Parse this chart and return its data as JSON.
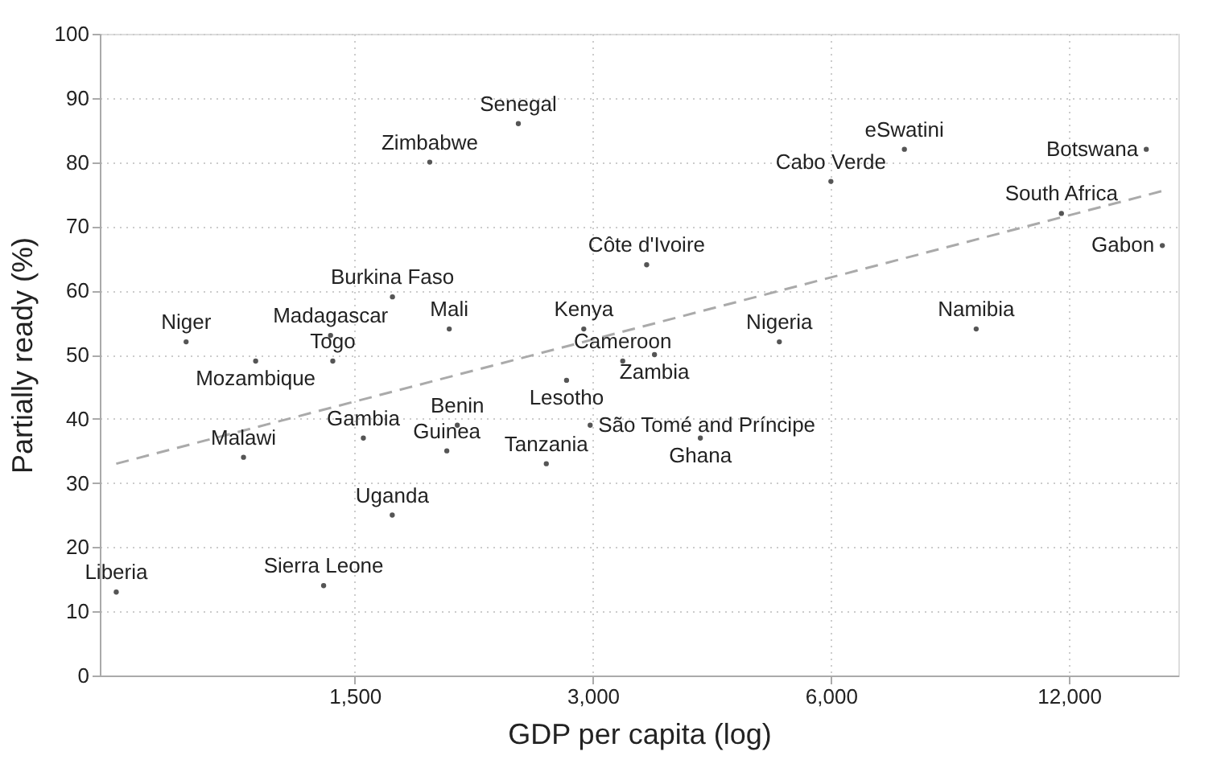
{
  "chart_data": {
    "type": "scatter",
    "xlabel": "GDP per capita (log)",
    "ylabel": "Partially ready (%)",
    "log": "x",
    "xlim": [
      714,
      16500
    ],
    "xticks": [
      {
        "value": 1500,
        "label": "1,500"
      },
      {
        "value": 3000,
        "label": "3,000"
      },
      {
        "value": 6000,
        "label": "6,000"
      },
      {
        "value": 12000,
        "label": "12,000"
      }
    ],
    "ylim": [
      0,
      100
    ],
    "yticks": [
      0,
      10,
      20,
      30,
      40,
      50,
      60,
      70,
      80,
      90,
      100
    ],
    "grid": true,
    "series": [
      {
        "color": "#555555",
        "marker": "circle",
        "x": [
          749,
          918,
          1124,
          1398,
          1407,
          1085,
          1538,
          1673,
          1370,
          1674,
          1975,
          1961,
          2415,
          1866,
          3509,
          2922,
          3273,
          3590,
          2779,
          2022,
          2977,
          2620,
          4103,
          5164,
          7432,
          15030,
          6000,
          11740,
          15750,
          9160
        ],
        "values": [
          13,
          52,
          49,
          53,
          49,
          34,
          37,
          25,
          14,
          59,
          54,
          35,
          86,
          80,
          64,
          54,
          49,
          50,
          46,
          39,
          39,
          33,
          37,
          52,
          82,
          82,
          77,
          72,
          67,
          54
        ]
      },
      {
        "type": "line",
        "color": "#aaaaaa",
        "line_style": "dashed",
        "marker": "none",
        "x": [
          749,
          15750
        ],
        "values": [
          33,
          75.5
        ]
      }
    ],
    "annotations": [
      {
        "text": "Liberia",
        "x": 749,
        "y": 13
      },
      {
        "text": "Niger",
        "x": 918,
        "y": 52
      },
      {
        "text": "Mozambique",
        "x": 1124,
        "y": 49
      },
      {
        "text": "Madagascar",
        "x": 1398,
        "y": 53
      },
      {
        "text": "Togo",
        "x": 1407,
        "y": 49
      },
      {
        "text": "Malawi",
        "x": 1085,
        "y": 34
      },
      {
        "text": "Gambia",
        "x": 1538,
        "y": 37
      },
      {
        "text": "Uganda",
        "x": 1673,
        "y": 25
      },
      {
        "text": "Sierra Leone",
        "x": 1370,
        "y": 14
      },
      {
        "text": "Burkina Faso",
        "x": 1674,
        "y": 59
      },
      {
        "text": "Mali",
        "x": 1975,
        "y": 54
      },
      {
        "text": "Guinea",
        "x": 1961,
        "y": 35
      },
      {
        "text": "Senegal",
        "x": 2415,
        "y": 86
      },
      {
        "text": "Zimbabwe",
        "x": 1866,
        "y": 80
      },
      {
        "text": "Côte d'Ivoire",
        "x": 3509,
        "y": 64
      },
      {
        "text": "Kenya",
        "x": 2922,
        "y": 54
      },
      {
        "text": "Cameroon",
        "x": 3273,
        "y": 49
      },
      {
        "text": "Zambia",
        "x": 3590,
        "y": 50
      },
      {
        "text": "Lesotho",
        "x": 2779,
        "y": 46
      },
      {
        "text": "Benin",
        "x": 2022,
        "y": 39
      },
      {
        "text": "São Tomé and Príncipe",
        "x": 2977,
        "y": 39
      },
      {
        "text": "Tanzania",
        "x": 2620,
        "y": 33
      },
      {
        "text": "Ghana",
        "x": 4103,
        "y": 37
      },
      {
        "text": "Nigeria",
        "x": 5164,
        "y": 52
      },
      {
        "text": "eSwatini",
        "x": 7432,
        "y": 82
      },
      {
        "text": "Botswana",
        "x": 15030,
        "y": 82
      },
      {
        "text": "Cabo Verde",
        "x": 6000,
        "y": 77
      },
      {
        "text": "South Africa",
        "x": 11740,
        "y": 72
      },
      {
        "text": "Gabon",
        "x": 15750,
        "y": 67
      },
      {
        "text": "Namibia",
        "x": 9160,
        "y": 54
      }
    ]
  }
}
